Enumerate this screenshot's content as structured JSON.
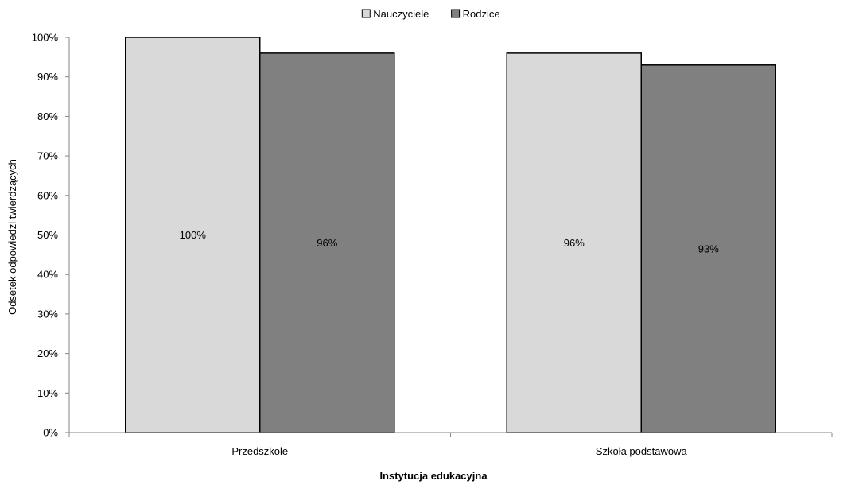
{
  "chart_data": {
    "type": "bar",
    "title": "",
    "xlabel": "Instytucja edukacyjna",
    "ylabel": "Odsetek odpowiedzi twierdzących",
    "categories": [
      "Przedszkole",
      "Szkoła podstawowa"
    ],
    "series": [
      {
        "name": "Nauczyciele",
        "values": [
          100,
          96
        ],
        "labels": [
          "100%",
          "96%"
        ],
        "color": "#d9d9d9"
      },
      {
        "name": "Rodzice",
        "values": [
          96,
          93
        ],
        "labels": [
          "96%",
          "93%"
        ],
        "color": "#808080"
      }
    ],
    "ylim": [
      0,
      100
    ],
    "yticks": [
      "0%",
      "10%",
      "20%",
      "30%",
      "40%",
      "50%",
      "60%",
      "70%",
      "80%",
      "90%",
      "100%"
    ],
    "legend_position": "top-center",
    "grid": false,
    "data_labels_position": "center"
  }
}
